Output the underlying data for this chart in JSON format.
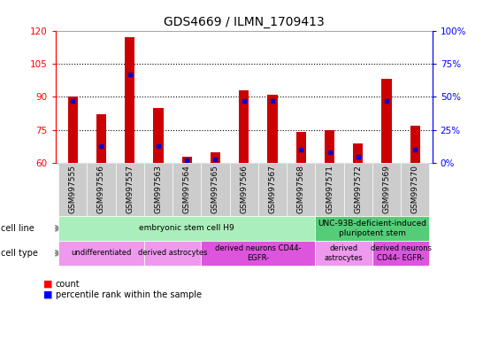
{
  "title": "GDS4669 / ILMN_1709413",
  "samples": [
    "GSM997555",
    "GSM997556",
    "GSM997557",
    "GSM997563",
    "GSM997564",
    "GSM997565",
    "GSM997566",
    "GSM997567",
    "GSM997568",
    "GSM997571",
    "GSM997572",
    "GSM997569",
    "GSM997570"
  ],
  "count_values": [
    90,
    82,
    117,
    85,
    63,
    65,
    93,
    91,
    74,
    75,
    69,
    98,
    77
  ],
  "percentile_values": [
    47,
    13,
    67,
    13,
    2,
    3,
    47,
    47,
    10,
    8,
    5,
    47,
    10
  ],
  "ylim_left": [
    60,
    120
  ],
  "ylim_right": [
    0,
    100
  ],
  "yticks_left": [
    60,
    75,
    90,
    105,
    120
  ],
  "yticks_right": [
    0,
    25,
    50,
    75,
    100
  ],
  "bar_color": "#cc0000",
  "percentile_color": "#0000cc",
  "background_color": "#ffffff",
  "grid_lines": [
    75,
    90,
    105
  ],
  "cell_line_groups": [
    {
      "label": "embryonic stem cell H9",
      "start": 0,
      "end": 8,
      "color": "#aaeebb"
    },
    {
      "label": "UNC-93B-deficient-induced\npluripotent stem",
      "start": 9,
      "end": 12,
      "color": "#55cc77"
    }
  ],
  "cell_type_groups": [
    {
      "label": "undifferentiated",
      "start": 0,
      "end": 2,
      "color": "#ee99ee"
    },
    {
      "label": "derived astrocytes",
      "start": 3,
      "end": 4,
      "color": "#ee99ee"
    },
    {
      "label": "derived neurons CD44-\nEGFR-",
      "start": 5,
      "end": 8,
      "color": "#dd55dd"
    },
    {
      "label": "derived\nastrocytes",
      "start": 9,
      "end": 10,
      "color": "#ee99ee"
    },
    {
      "label": "derived neurons\nCD44- EGFR-",
      "start": 11,
      "end": 12,
      "color": "#dd55dd"
    }
  ],
  "tick_label_fontsize": 6.5,
  "title_fontsize": 10,
  "bar_width": 0.35
}
